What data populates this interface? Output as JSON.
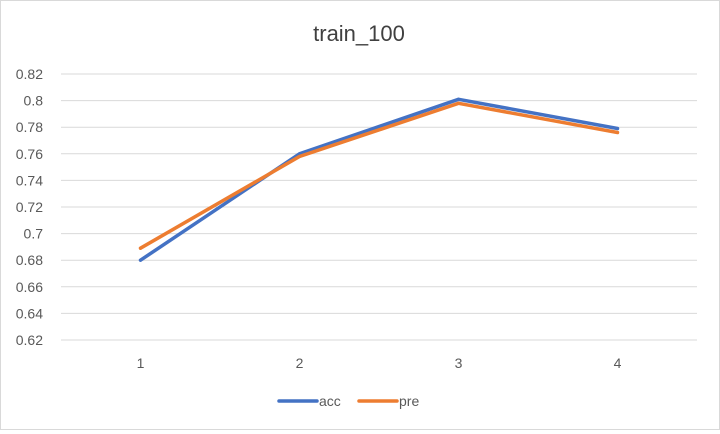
{
  "chart_data": {
    "type": "line",
    "title": "train_100",
    "x": [
      "1",
      "2",
      "3",
      "4"
    ],
    "series": [
      {
        "name": "acc",
        "values": [
          0.68,
          0.76,
          0.801,
          0.779
        ],
        "color": "#4472C4"
      },
      {
        "name": "pre",
        "values": [
          0.689,
          0.758,
          0.798,
          0.776
        ],
        "color": "#ED7D31"
      }
    ],
    "ylim": [
      0.62,
      0.82
    ],
    "yticks": [
      "0.62",
      "0.64",
      "0.66",
      "0.68",
      "0.7",
      "0.72",
      "0.74",
      "0.76",
      "0.78",
      "0.8",
      "0.82"
    ],
    "grid": true,
    "legend": "bottom",
    "axis_color": "#595959",
    "grid_color": "#d9d9d9",
    "title_color": "#404040"
  }
}
